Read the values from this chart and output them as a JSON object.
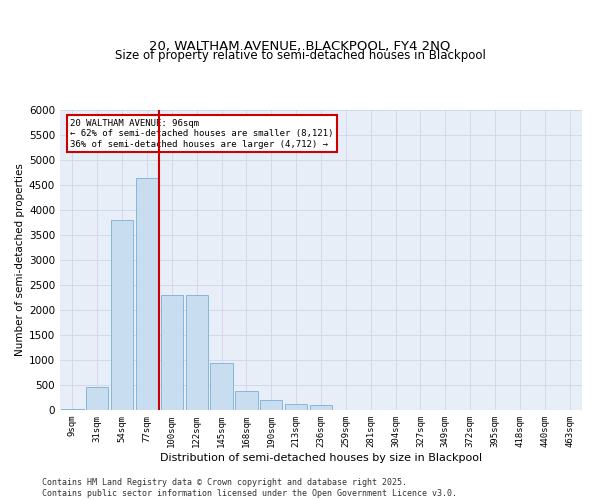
{
  "title1": "20, WALTHAM AVENUE, BLACKPOOL, FY4 2NQ",
  "title2": "Size of property relative to semi-detached houses in Blackpool",
  "xlabel": "Distribution of semi-detached houses by size in Blackpool",
  "ylabel": "Number of semi-detached properties",
  "categories": [
    "9sqm",
    "31sqm",
    "54sqm",
    "77sqm",
    "100sqm",
    "122sqm",
    "145sqm",
    "168sqm",
    "190sqm",
    "213sqm",
    "236sqm",
    "259sqm",
    "281sqm",
    "304sqm",
    "327sqm",
    "349sqm",
    "372sqm",
    "395sqm",
    "418sqm",
    "440sqm",
    "463sqm"
  ],
  "values": [
    30,
    460,
    3800,
    4650,
    2300,
    2300,
    950,
    380,
    200,
    120,
    100,
    0,
    0,
    0,
    0,
    0,
    0,
    0,
    0,
    0,
    0
  ],
  "bar_color": "#c9ddf0",
  "bar_edge_color": "#7aafd4",
  "vline_color": "#cc0000",
  "vline_index": 3.5,
  "annotation_line1": "20 WALTHAM AVENUE: 96sqm",
  "annotation_line2": "← 62% of semi-detached houses are smaller (8,121)",
  "annotation_line3": "36% of semi-detached houses are larger (4,712) →",
  "annotation_box_color": "#cc0000",
  "ylim": [
    0,
    6000
  ],
  "yticks": [
    0,
    500,
    1000,
    1500,
    2000,
    2500,
    3000,
    3500,
    4000,
    4500,
    5000,
    5500,
    6000
  ],
  "grid_color": "#cdd6e8",
  "bg_color": "#e8eef8",
  "footer1": "Contains HM Land Registry data © Crown copyright and database right 2025.",
  "footer2": "Contains public sector information licensed under the Open Government Licence v3.0."
}
